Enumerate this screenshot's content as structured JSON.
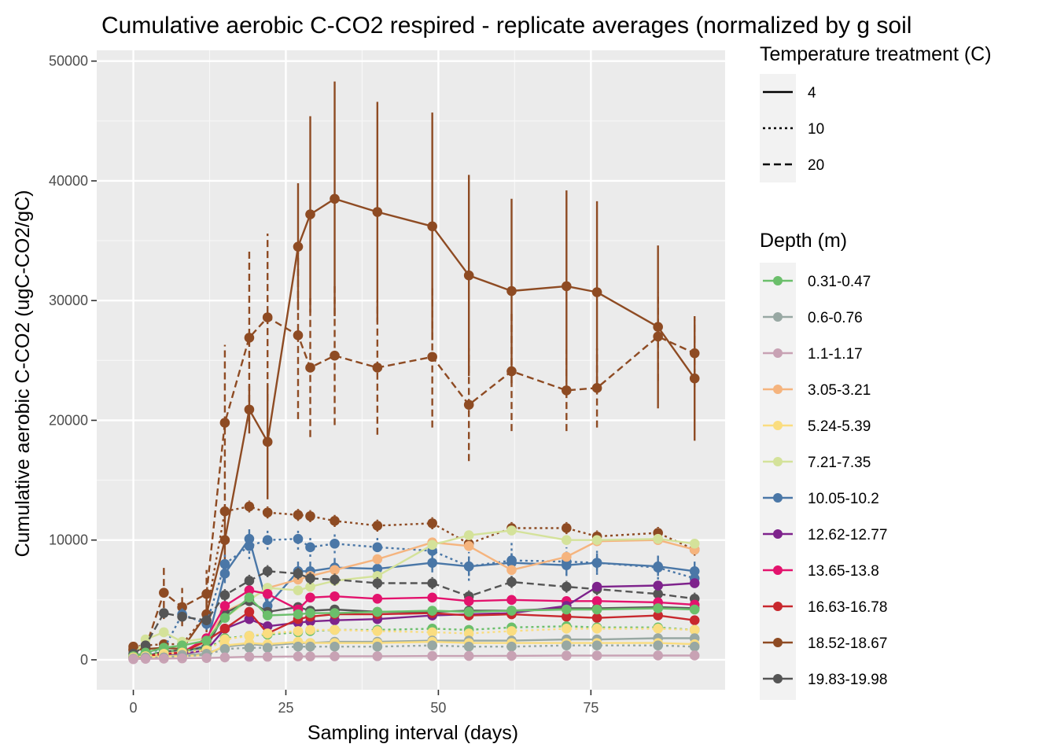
{
  "chart_data": {
    "type": "line",
    "title": "Cumulative aerobic C-CO2 respired - replicate averages (normalized by g soil",
    "xlabel": "Sampling interval (days)",
    "ylabel": "Cumulative aerobic C-CO2 (ugC-CO2/gC)",
    "xlim": [
      -6,
      97
    ],
    "ylim": [
      -2500,
      50900
    ],
    "x_ticks": [
      0,
      25,
      50,
      75
    ],
    "x_tick_labels": [
      "0",
      "25",
      "50",
      "75"
    ],
    "y_ticks": [
      0,
      10000,
      20000,
      30000,
      40000,
      50000
    ],
    "y_tick_labels": [
      "0",
      "10000",
      "20000",
      "30000",
      "40000",
      "50000"
    ],
    "grid": true,
    "legend_position": "right",
    "x": [
      0,
      2,
      5,
      8,
      12,
      15,
      19,
      22,
      27,
      29,
      33,
      40,
      49,
      55,
      62,
      71,
      76,
      86,
      92
    ],
    "legend_temperature": {
      "title": "Temperature treatment (C)",
      "entries": [
        {
          "label": "4",
          "dash": "solid"
        },
        {
          "label": "10",
          "dash": "dotted"
        },
        {
          "label": "20",
          "dash": "dashed"
        }
      ]
    },
    "legend_depth": {
      "title": "Depth (m)",
      "entries": [
        {
          "label": "0.31-0.47",
          "color": "#6BBF6B"
        },
        {
          "label": "0.6-0.76",
          "color": "#98A8A3"
        },
        {
          "label": "1.1-1.17",
          "color": "#C8A2B4"
        },
        {
          "label": "3.05-3.21",
          "color": "#F5B47E"
        },
        {
          "label": "5.24-5.39",
          "color": "#FADD80"
        },
        {
          "label": "7.21-7.35",
          "color": "#D4E29A"
        },
        {
          "label": "10.05-10.2",
          "color": "#4A77A7"
        },
        {
          "label": "12.62-12.77",
          "color": "#7E238C"
        },
        {
          "label": "13.65-13.8",
          "color": "#E3136D"
        },
        {
          "label": "16.63-16.78",
          "color": "#C8282E"
        },
        {
          "label": "18.52-18.67",
          "color": "#8E4B23"
        },
        {
          "label": "19.83-19.98",
          "color": "#555555"
        }
      ]
    },
    "series": [
      {
        "depth": "18.52-18.67",
        "temperature": "4",
        "color": "#8E4B23",
        "dash": "solid",
        "values": [
          800,
          900,
          1000,
          900,
          3800,
          10000,
          20900,
          18200,
          34500,
          37200,
          38500,
          37400,
          36200,
          32100,
          30800,
          31200,
          30700,
          27800,
          23500
        ],
        "errors": [
          300,
          300,
          400,
          400,
          1500,
          3000,
          2000,
          4800,
          5300,
          8200,
          9800,
          9200,
          9500,
          8400,
          7700,
          8000,
          7600,
          6800,
          5200
        ]
      },
      {
        "depth": "18.52-18.67",
        "temperature": "20",
        "color": "#8E4B23",
        "dash": "dashed",
        "values": [
          900,
          1000,
          5600,
          4400,
          5500,
          19800,
          26900,
          28600,
          27100,
          24400,
          25400,
          24400,
          25300,
          21300,
          24100,
          22500,
          22700,
          27000,
          25600
        ],
        "errors": [
          300,
          400,
          2200,
          1600,
          2000,
          6500,
          7200,
          7000,
          7000,
          5800,
          5800,
          5600,
          5900,
          4700,
          5000,
          3400,
          3300,
          3700,
          2800
        ]
      },
      {
        "depth": "18.52-18.67",
        "temperature": "10",
        "color": "#8E4B23",
        "dash": "dotted",
        "values": [
          1100,
          1200,
          1300,
          1300,
          3800,
          12400,
          12800,
          12300,
          12100,
          12000,
          11600,
          11200,
          11400,
          9700,
          11000,
          11000,
          10300,
          10600,
          9200
        ],
        "errors": [
          200,
          300,
          300,
          300,
          600,
          600,
          500,
          500,
          500,
          500,
          500,
          500,
          500,
          500,
          500,
          500,
          500,
          500,
          500
        ]
      },
      {
        "depth": "10.05-10.2",
        "temperature": "10",
        "color": "#4A77A7",
        "dash": "dotted",
        "values": [
          300,
          600,
          900,
          3800,
          3000,
          8000,
          9500,
          10000,
          10100,
          9400,
          9700,
          9400,
          9100,
          7800,
          8300,
          8200,
          8100,
          7700,
          6800
        ],
        "errors": [
          100,
          200,
          300,
          500,
          500,
          800,
          1100,
          800,
          900,
          800,
          800,
          800,
          800,
          1200,
          1500,
          1200,
          1000,
          1000,
          800
        ]
      },
      {
        "depth": "10.05-10.2",
        "temperature": "4",
        "color": "#4A77A7",
        "dash": "solid",
        "values": [
          200,
          300,
          500,
          600,
          1200,
          7200,
          10100,
          4500,
          7400,
          7400,
          7700,
          7600,
          8100,
          7800,
          8100,
          7900,
          8100,
          7800,
          7400
        ],
        "errors": [
          100,
          100,
          200,
          200,
          300,
          800,
          800,
          800,
          800,
          800,
          800,
          800,
          800,
          800,
          800,
          800,
          800,
          800,
          800
        ]
      },
      {
        "depth": "3.05-3.21",
        "temperature": "4",
        "color": "#F5B47E",
        "dash": "solid",
        "values": [
          200,
          300,
          500,
          600,
          1500,
          4000,
          5000,
          6000,
          6700,
          7000,
          7500,
          8400,
          9800,
          9500,
          7500,
          8600,
          9900,
          10000,
          9200
        ],
        "errors": [
          100,
          100,
          100,
          100,
          200,
          300,
          300,
          300,
          300,
          300,
          300,
          300,
          300,
          300,
          300,
          300,
          300,
          300,
          300
        ]
      },
      {
        "depth": "7.21-7.35",
        "temperature": "4",
        "color": "#D4E29A",
        "dash": "solid",
        "values": [
          300,
          1700,
          2300,
          1500,
          1800,
          3500,
          5000,
          6000,
          5800,
          6100,
          6600,
          7000,
          9600,
          10400,
          10800,
          10000,
          10000,
          10100,
          9700
        ],
        "errors": [
          100,
          200,
          200,
          200,
          200,
          300,
          300,
          300,
          300,
          300,
          300,
          300,
          300,
          300,
          300,
          300,
          300,
          300,
          300
        ]
      },
      {
        "depth": "19.83-19.98",
        "temperature": "20",
        "color": "#555555",
        "dash": "dashed",
        "values": [
          500,
          1200,
          3900,
          3600,
          3300,
          5400,
          6600,
          7400,
          7200,
          6800,
          6700,
          6400,
          6400,
          5300,
          6500,
          6100,
          5900,
          5500,
          5100
        ],
        "errors": [
          100,
          300,
          400,
          400,
          400,
          500,
          500,
          500,
          500,
          500,
          500,
          500,
          500,
          500,
          500,
          500,
          500,
          500,
          500
        ]
      },
      {
        "depth": "19.83-19.98",
        "temperature": "4",
        "color": "#555555",
        "dash": "solid",
        "values": [
          200,
          300,
          700,
          800,
          1000,
          3900,
          4900,
          4000,
          4400,
          4100,
          4200,
          4000,
          4000,
          4100,
          4100,
          4300,
          4300,
          4400,
          4300
        ],
        "errors": [
          100,
          100,
          100,
          100,
          200,
          300,
          300,
          300,
          300,
          300,
          300,
          300,
          300,
          300,
          300,
          300,
          300,
          300,
          300
        ]
      },
      {
        "depth": "13.65-13.8",
        "temperature": "4",
        "color": "#E3136D",
        "dash": "solid",
        "values": [
          200,
          300,
          500,
          600,
          1800,
          4500,
          5800,
          5500,
          4200,
          5200,
          5300,
          5100,
          5200,
          4900,
          5000,
          4900,
          4900,
          4800,
          4600
        ],
        "errors": [
          100,
          100,
          100,
          100,
          200,
          300,
          300,
          300,
          300,
          300,
          300,
          300,
          300,
          300,
          300,
          300,
          300,
          300,
          300
        ]
      },
      {
        "depth": "12.62-12.77",
        "temperature": "4",
        "color": "#7E238C",
        "dash": "solid",
        "values": [
          200,
          300,
          400,
          500,
          800,
          2600,
          3400,
          2800,
          3100,
          3200,
          3300,
          3400,
          3700,
          3800,
          3900,
          4500,
          6100,
          6200,
          6400
        ],
        "errors": [
          100,
          100,
          100,
          100,
          200,
          200,
          300,
          300,
          300,
          300,
          300,
          300,
          300,
          300,
          300,
          300,
          300,
          300,
          300
        ]
      },
      {
        "depth": "16.63-16.78",
        "temperature": "4",
        "color": "#C8282E",
        "dash": "solid",
        "values": [
          200,
          300,
          500,
          600,
          1600,
          2600,
          4000,
          2200,
          3400,
          3600,
          3800,
          3800,
          3900,
          3700,
          3800,
          3600,
          3500,
          3700,
          3300
        ],
        "errors": [
          100,
          100,
          100,
          100,
          200,
          300,
          300,
          300,
          300,
          300,
          300,
          300,
          300,
          300,
          300,
          300,
          300,
          300,
          300
        ]
      },
      {
        "depth": "0.31-0.47",
        "temperature": "4",
        "color": "#6BBF6B",
        "dash": "solid",
        "values": [
          300,
          600,
          1000,
          1200,
          1600,
          3500,
          5200,
          3700,
          3800,
          3900,
          3900,
          4000,
          4100,
          4000,
          4100,
          4200,
          4200,
          4300,
          4200
        ],
        "errors": [
          100,
          100,
          200,
          200,
          200,
          300,
          300,
          300,
          300,
          300,
          300,
          300,
          300,
          300,
          300,
          300,
          300,
          300,
          300
        ]
      },
      {
        "depth": "0.31-0.47",
        "temperature": "10",
        "color": "#6BBF6B",
        "dash": "dotted",
        "values": [
          200,
          400,
          700,
          800,
          900,
          1800,
          2000,
          2100,
          2300,
          2400,
          2500,
          2500,
          2600,
          2500,
          2700,
          2800,
          2700,
          2700,
          2500
        ],
        "errors": [
          100,
          100,
          100,
          100,
          100,
          200,
          200,
          200,
          200,
          200,
          200,
          200,
          200,
          200,
          200,
          200,
          200,
          200,
          200
        ]
      },
      {
        "depth": "5.24-5.39",
        "temperature": "10",
        "color": "#FADD80",
        "dash": "dotted",
        "values": [
          200,
          300,
          500,
          600,
          800,
          1700,
          2000,
          2200,
          2400,
          2500,
          2500,
          2400,
          2300,
          2200,
          2400,
          2600,
          2600,
          2600,
          2500
        ],
        "errors": [
          100,
          100,
          100,
          100,
          100,
          200,
          200,
          200,
          200,
          200,
          200,
          200,
          200,
          200,
          200,
          200,
          200,
          200,
          200
        ]
      },
      {
        "depth": "0.6-0.76",
        "temperature": "4",
        "color": "#98A8A3",
        "dash": "solid",
        "values": [
          100,
          200,
          300,
          400,
          500,
          1100,
          1300,
          1200,
          1400,
          1400,
          1500,
          1500,
          1600,
          1600,
          1600,
          1700,
          1700,
          1800,
          1800
        ],
        "errors": [
          50,
          50,
          100,
          100,
          100,
          150,
          150,
          150,
          150,
          150,
          150,
          150,
          150,
          150,
          150,
          150,
          150,
          150,
          150
        ]
      },
      {
        "depth": "5.24-5.39",
        "temperature": "4",
        "color": "#FADD80",
        "dash": "solid",
        "values": [
          100,
          200,
          300,
          300,
          400,
          1200,
          1400,
          1300,
          1500,
          1400,
          1400,
          1400,
          1500,
          1400,
          1400,
          1400,
          1400,
          1400,
          1300
        ],
        "errors": [
          50,
          50,
          100,
          100,
          100,
          150,
          150,
          150,
          150,
          150,
          150,
          150,
          150,
          150,
          150,
          150,
          150,
          150,
          150
        ]
      },
      {
        "depth": "0.6-0.76",
        "temperature": "10",
        "color": "#98A8A3",
        "dash": "dotted",
        "values": [
          100,
          200,
          200,
          300,
          400,
          900,
          1000,
          1000,
          1100,
          1100,
          1100,
          1100,
          1200,
          1100,
          1100,
          1200,
          1200,
          1200,
          1100
        ],
        "errors": [
          50,
          50,
          50,
          50,
          100,
          100,
          100,
          100,
          100,
          100,
          100,
          100,
          100,
          100,
          100,
          100,
          100,
          100,
          100
        ]
      },
      {
        "depth": "1.1-1.17",
        "temperature": "4",
        "color": "#C8A2B4",
        "dash": "solid",
        "values": [
          50,
          80,
          100,
          120,
          150,
          200,
          250,
          250,
          280,
          280,
          290,
          300,
          320,
          320,
          330,
          350,
          350,
          360,
          360
        ],
        "errors": [
          20,
          20,
          30,
          30,
          30,
          40,
          40,
          40,
          40,
          40,
          40,
          40,
          40,
          40,
          40,
          40,
          40,
          40,
          40
        ]
      }
    ]
  }
}
